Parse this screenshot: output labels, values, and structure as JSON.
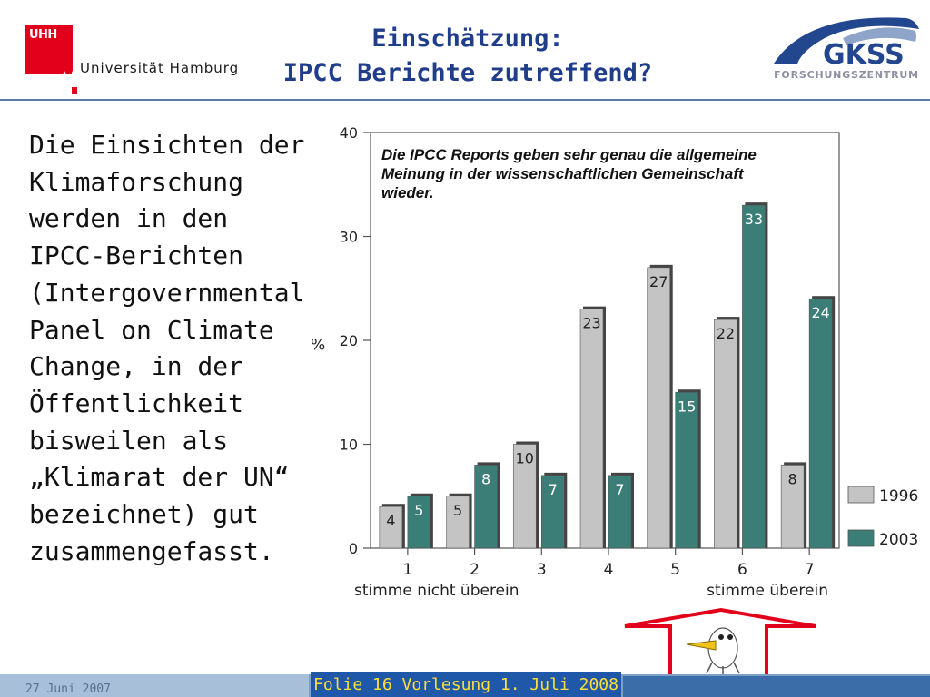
{
  "header": {
    "logo_short": "UHH",
    "university": "Universität Hamburg",
    "title_line1": "Einschätzung:",
    "title_line2": "IPCC Berichte zutreffend?",
    "partner_logo": "GKSS",
    "partner_sub": "FORSCHUNGSZENTRUM"
  },
  "body": {
    "text": "Die Einsichten der Klimaforschung werden in den IPCC-Berichten (Intergovernmental Panel on Climate Change, in der Öffentlichkeit bisweilen als „Klimarat der UN“ bezeichnet) gut zusammengefasst."
  },
  "footer": {
    "date": "27 Juni 2007",
    "slide_label": "Folie 16 Vorlesung 1. Juli 2008"
  },
  "colors": {
    "title": "#1f3d8a",
    "bar_1996": "#c4c4c4",
    "bar_2003": "#3b7d77",
    "accent_red": "#e2001a"
  },
  "icons": {
    "arrow": "up-arrow-outline-icon",
    "bird": "bird-mascot-icon"
  },
  "chart_data": {
    "type": "bar",
    "title": "Die IPCC Reports geben sehr genau die allgemeine Meinung in der wissenschaftlichen Gemeinschaft wieder.",
    "categories": [
      "1",
      "2",
      "3",
      "4",
      "5",
      "6",
      "7"
    ],
    "series": [
      {
        "name": "1996",
        "values": [
          4,
          5,
          10,
          23,
          27,
          22,
          8
        ]
      },
      {
        "name": "2003",
        "values": [
          5,
          8,
          7,
          7,
          15,
          33,
          24
        ]
      }
    ],
    "ylabel": "%",
    "ylim": [
      0,
      40
    ],
    "yticks": [
      0,
      10,
      20,
      30,
      40
    ],
    "x_left_annotation": "stimme nicht überein",
    "x_right_annotation": "stimme überein",
    "grid": false,
    "legend_position": "bottom-right"
  }
}
